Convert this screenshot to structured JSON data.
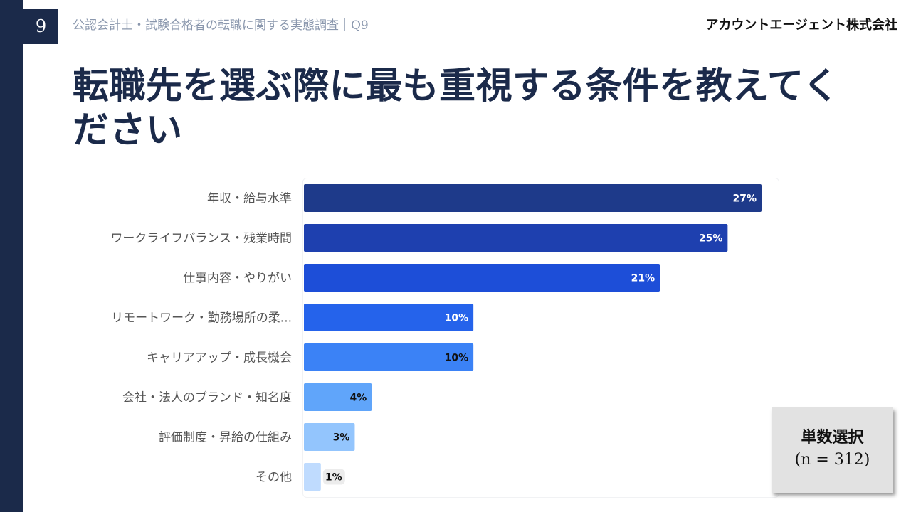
{
  "page_number": "9",
  "header": {
    "survey_title": "公認会計士・試験合格者の転職に関する実態調査｜Q9",
    "company": "アカウントエージェント株式会社"
  },
  "title": "転職先を選ぶ際に最も重視する条件を教えてください",
  "badge": {
    "selection_type": "単数選択",
    "sample_size": "(n = 312)"
  },
  "chart_data": {
    "type": "bar",
    "orientation": "horizontal",
    "categories": [
      "年収・給与水準",
      "ワークライフバランス・残業時間",
      "仕事内容・やりがい",
      "リモートワーク・勤務場所の柔...",
      "キャリアアップ・成長機会",
      "会社・法人のブランド・知名度",
      "評価制度・昇給の仕組み",
      "その他"
    ],
    "values": [
      27,
      25,
      21,
      10,
      10,
      4,
      3,
      1
    ],
    "data_labels": [
      "27%",
      "25%",
      "21%",
      "10%",
      "10%",
      "4%",
      "3%",
      "1%"
    ],
    "bar_colors": [
      "#1e3a8a",
      "#1e40af",
      "#1d4ed8",
      "#2563eb",
      "#3b82f6",
      "#60a5fa",
      "#93c5fd",
      "#bfdbfe"
    ],
    "label_colors": [
      "#ffffff",
      "#ffffff",
      "#ffffff",
      "#ffffff",
      "#111111",
      "#111111",
      "#111111",
      "#111111"
    ],
    "xlim": [
      0,
      28
    ],
    "grid": false,
    "legend": "none"
  }
}
